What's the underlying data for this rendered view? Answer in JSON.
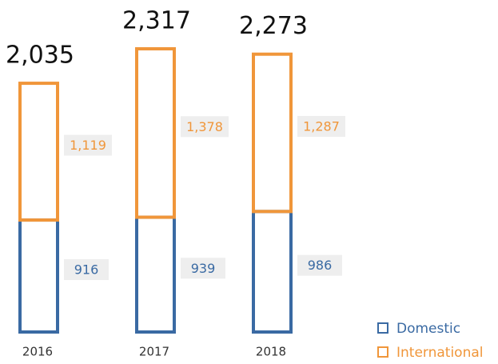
{
  "chart_data": {
    "type": "stacked-bar",
    "categories": [
      "2016",
      "2017",
      "2018"
    ],
    "series": [
      {
        "name": "Domestic",
        "color": "#3a6aa3",
        "values": [
          916,
          939,
          986
        ]
      },
      {
        "name": "International",
        "color": "#f0963a",
        "values": [
          1119,
          1378,
          1287
        ],
        "value_labels": [
          "1,119",
          "1,378",
          "1,287"
        ]
      }
    ],
    "totals": [
      2035,
      2317,
      2273
    ],
    "total_labels": [
      "2,035",
      "2,317",
      "2,273"
    ],
    "legend": "bottom-right"
  }
}
